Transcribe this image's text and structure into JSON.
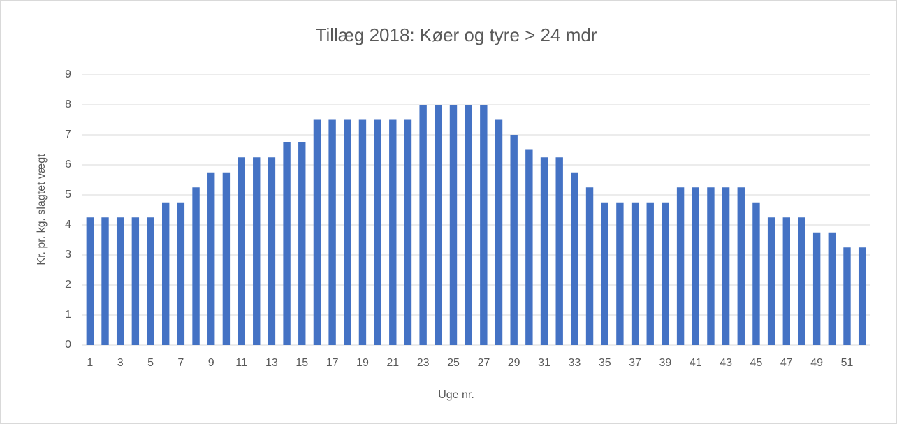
{
  "chart_data": {
    "type": "bar",
    "title": "Tillæg 2018: Køer og tyre > 24 mdr",
    "x_label": "Uge nr.",
    "y_label": "Kr. pr. kg. slagtet vægt",
    "categories": [
      1,
      null,
      3,
      null,
      5,
      null,
      7,
      null,
      9,
      null,
      11,
      null,
      13,
      null,
      15,
      null,
      17,
      null,
      19,
      null,
      21,
      null,
      23,
      null,
      25,
      null,
      27,
      null,
      29,
      null,
      31,
      null,
      33,
      null,
      35,
      null,
      37,
      null,
      39,
      null,
      41,
      null,
      43,
      null,
      45,
      null,
      47,
      null,
      49,
      null,
      51,
      null
    ],
    "values": [
      4.25,
      4.25,
      4.25,
      4.25,
      4.25,
      4.75,
      4.75,
      5.25,
      5.75,
      5.75,
      6.25,
      6.25,
      6.25,
      6.75,
      6.75,
      7.5,
      7.5,
      7.5,
      7.5,
      7.5,
      7.5,
      7.5,
      8,
      8,
      8,
      8,
      8,
      7.5,
      7,
      6.5,
      6.25,
      6.25,
      5.75,
      5.25,
      4.75,
      4.75,
      4.75,
      4.75,
      4.75,
      5.25,
      5.25,
      5.25,
      5.25,
      5.25,
      4.75,
      4.25,
      4.25,
      4.25,
      3.75,
      3.75,
      3.25,
      3.25
    ],
    "color": "#4472c4",
    "ylim": [
      0,
      9
    ],
    "yticks": [
      0,
      1,
      2,
      3,
      4,
      5,
      6,
      7,
      8,
      9
    ],
    "grid": true
  }
}
